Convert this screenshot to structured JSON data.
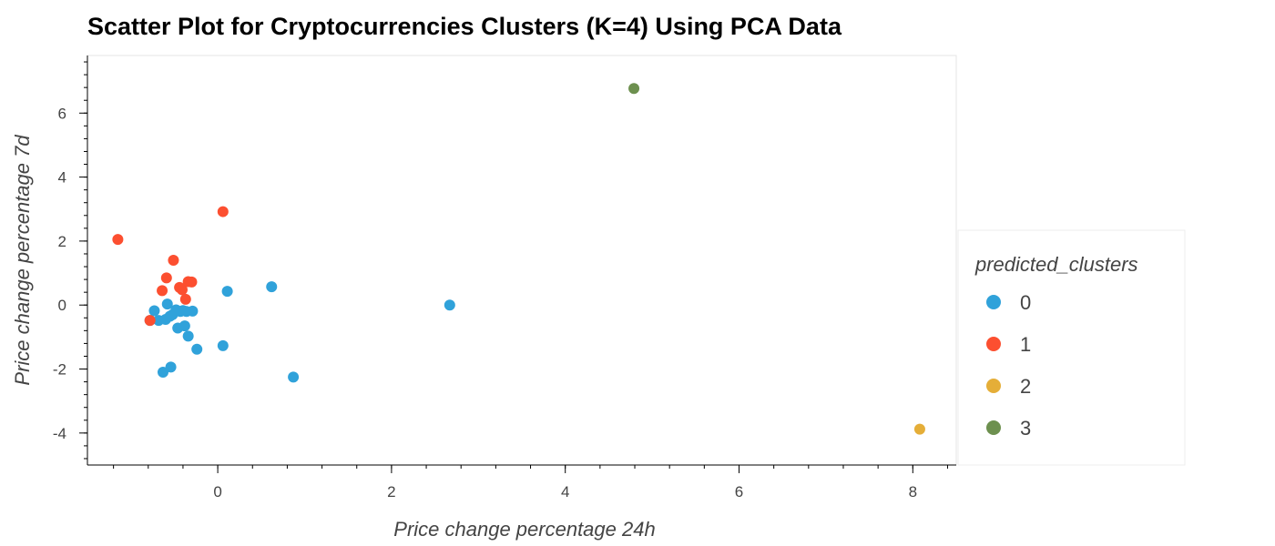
{
  "chart_data": {
    "type": "scatter",
    "title": "Scatter Plot for Cryptocurrencies Clusters (K=4) Using PCA Data",
    "xlabel": "Price change  percentage  24h",
    "ylabel": "Price change  percentage  7d",
    "xlim": [
      -1.5,
      8.5
    ],
    "ylim": [
      -5.0,
      7.8
    ],
    "xticks": [
      0,
      2,
      4,
      6,
      8
    ],
    "yticks": [
      -4,
      -2,
      0,
      2,
      4,
      6
    ],
    "grid": false,
    "legend": {
      "title": "predicted_clusters",
      "placement": "right"
    },
    "series": [
      {
        "name": "0",
        "color": "#30a2da",
        "points": [
          [
            -0.73,
            -0.18
          ],
          [
            -0.78,
            -0.48
          ],
          [
            -0.68,
            -0.48
          ],
          [
            -0.6,
            -0.45
          ],
          [
            -0.58,
            0.03
          ],
          [
            -0.55,
            -0.35
          ],
          [
            -0.52,
            -0.3
          ],
          [
            -0.48,
            -0.15
          ],
          [
            -0.46,
            -0.72
          ],
          [
            -0.43,
            -0.2
          ],
          [
            -0.4,
            -0.17
          ],
          [
            -0.38,
            -0.65
          ],
          [
            -0.36,
            -0.2
          ],
          [
            -0.34,
            -0.97
          ],
          [
            -0.29,
            -0.19
          ],
          [
            -0.24,
            -1.38
          ],
          [
            -0.63,
            -2.1
          ],
          [
            -0.54,
            -1.94
          ],
          [
            0.06,
            -1.27
          ],
          [
            0.11,
            0.43
          ],
          [
            0.62,
            0.57
          ],
          [
            0.87,
            -2.25
          ],
          [
            2.67,
            0.0
          ]
        ]
      },
      {
        "name": "1",
        "color": "#fc4f30",
        "points": [
          [
            -1.15,
            2.05
          ],
          [
            -0.78,
            -0.48
          ],
          [
            -0.64,
            0.45
          ],
          [
            -0.59,
            0.85
          ],
          [
            -0.51,
            1.4
          ],
          [
            -0.44,
            0.55
          ],
          [
            -0.41,
            0.48
          ],
          [
            -0.37,
            0.18
          ],
          [
            -0.34,
            0.73
          ],
          [
            -0.3,
            0.72
          ],
          [
            0.06,
            2.92
          ]
        ]
      },
      {
        "name": "2",
        "color": "#e5ae38",
        "points": [
          [
            8.08,
            -3.88
          ]
        ]
      },
      {
        "name": "3",
        "color": "#6d904f",
        "points": [
          [
            4.79,
            6.77
          ]
        ]
      }
    ]
  }
}
